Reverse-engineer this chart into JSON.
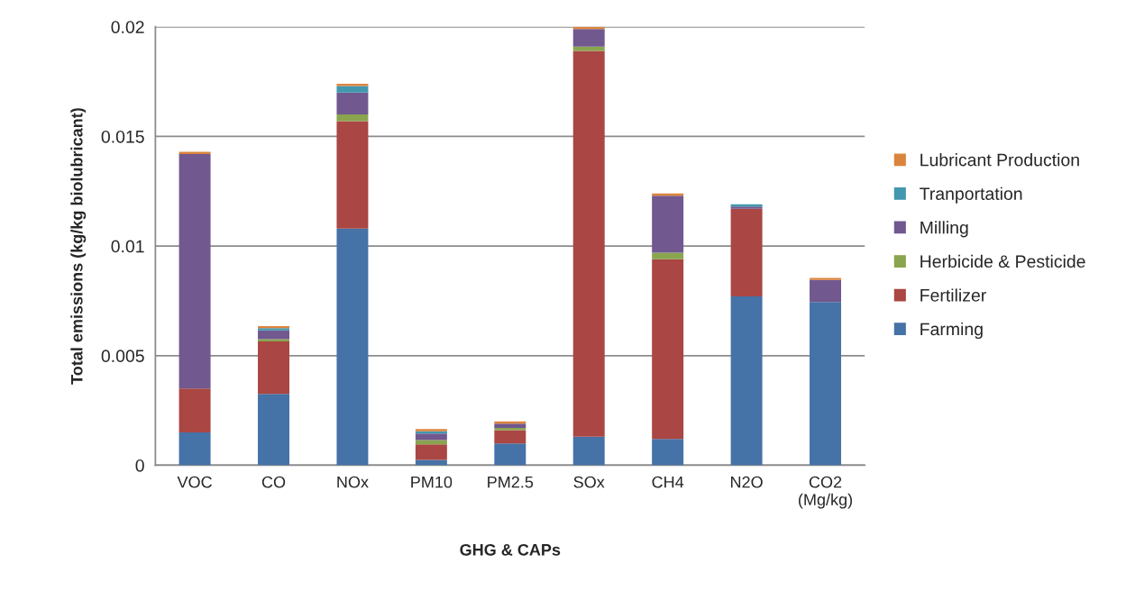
{
  "chart_data": {
    "type": "bar",
    "stacked": true,
    "xlabel": "GHG & CAPs",
    "ylabel": "Total emissions (kg/kg biolubricant)",
    "categories": [
      "VOC",
      "CO",
      "NOx",
      "PM10",
      "PM2.5",
      "SOx",
      "CH4",
      "N2O",
      "CO2\n(Mg/kg)"
    ],
    "series": [
      {
        "name": "Farming",
        "color": "#4572a7",
        "values": [
          0.0015,
          0.00325,
          0.0108,
          0.00025,
          0.001,
          0.0013,
          0.0012,
          0.0077,
          0.00745
        ]
      },
      {
        "name": "Fertilizer",
        "color": "#aa4643",
        "values": [
          0.002,
          0.0024,
          0.0049,
          0.0007,
          0.0006,
          0.0176,
          0.0082,
          0.004,
          null
        ]
      },
      {
        "name": "Herbicide & Pesticide",
        "color": "#89a54e",
        "values": [
          null,
          0.0001,
          0.0003,
          0.0002,
          0.0001,
          0.0002,
          0.0003,
          null,
          null
        ]
      },
      {
        "name": "Milling",
        "color": "#71588f",
        "values": [
          0.0107,
          0.0004,
          0.001,
          0.0003,
          0.0002,
          0.0008,
          0.0026,
          0.0001,
          0.001
        ]
      },
      {
        "name": "Tranportation",
        "color": "#4198af",
        "values": [
          null,
          0.0001,
          0.0003,
          0.0001,
          null,
          null,
          null,
          0.0001,
          null
        ]
      },
      {
        "name": "Lubricant Production",
        "color": "#db843d",
        "values": [
          0.0001,
          0.0001,
          0.0001,
          0.0001,
          0.0001,
          0.0001,
          0.0001,
          null,
          0.0001
        ]
      }
    ],
    "ylim": [
      0,
      0.02
    ],
    "yticks": [
      0,
      0.005,
      0.01,
      0.015,
      0.02
    ],
    "grid": "y",
    "legend": "right"
  }
}
